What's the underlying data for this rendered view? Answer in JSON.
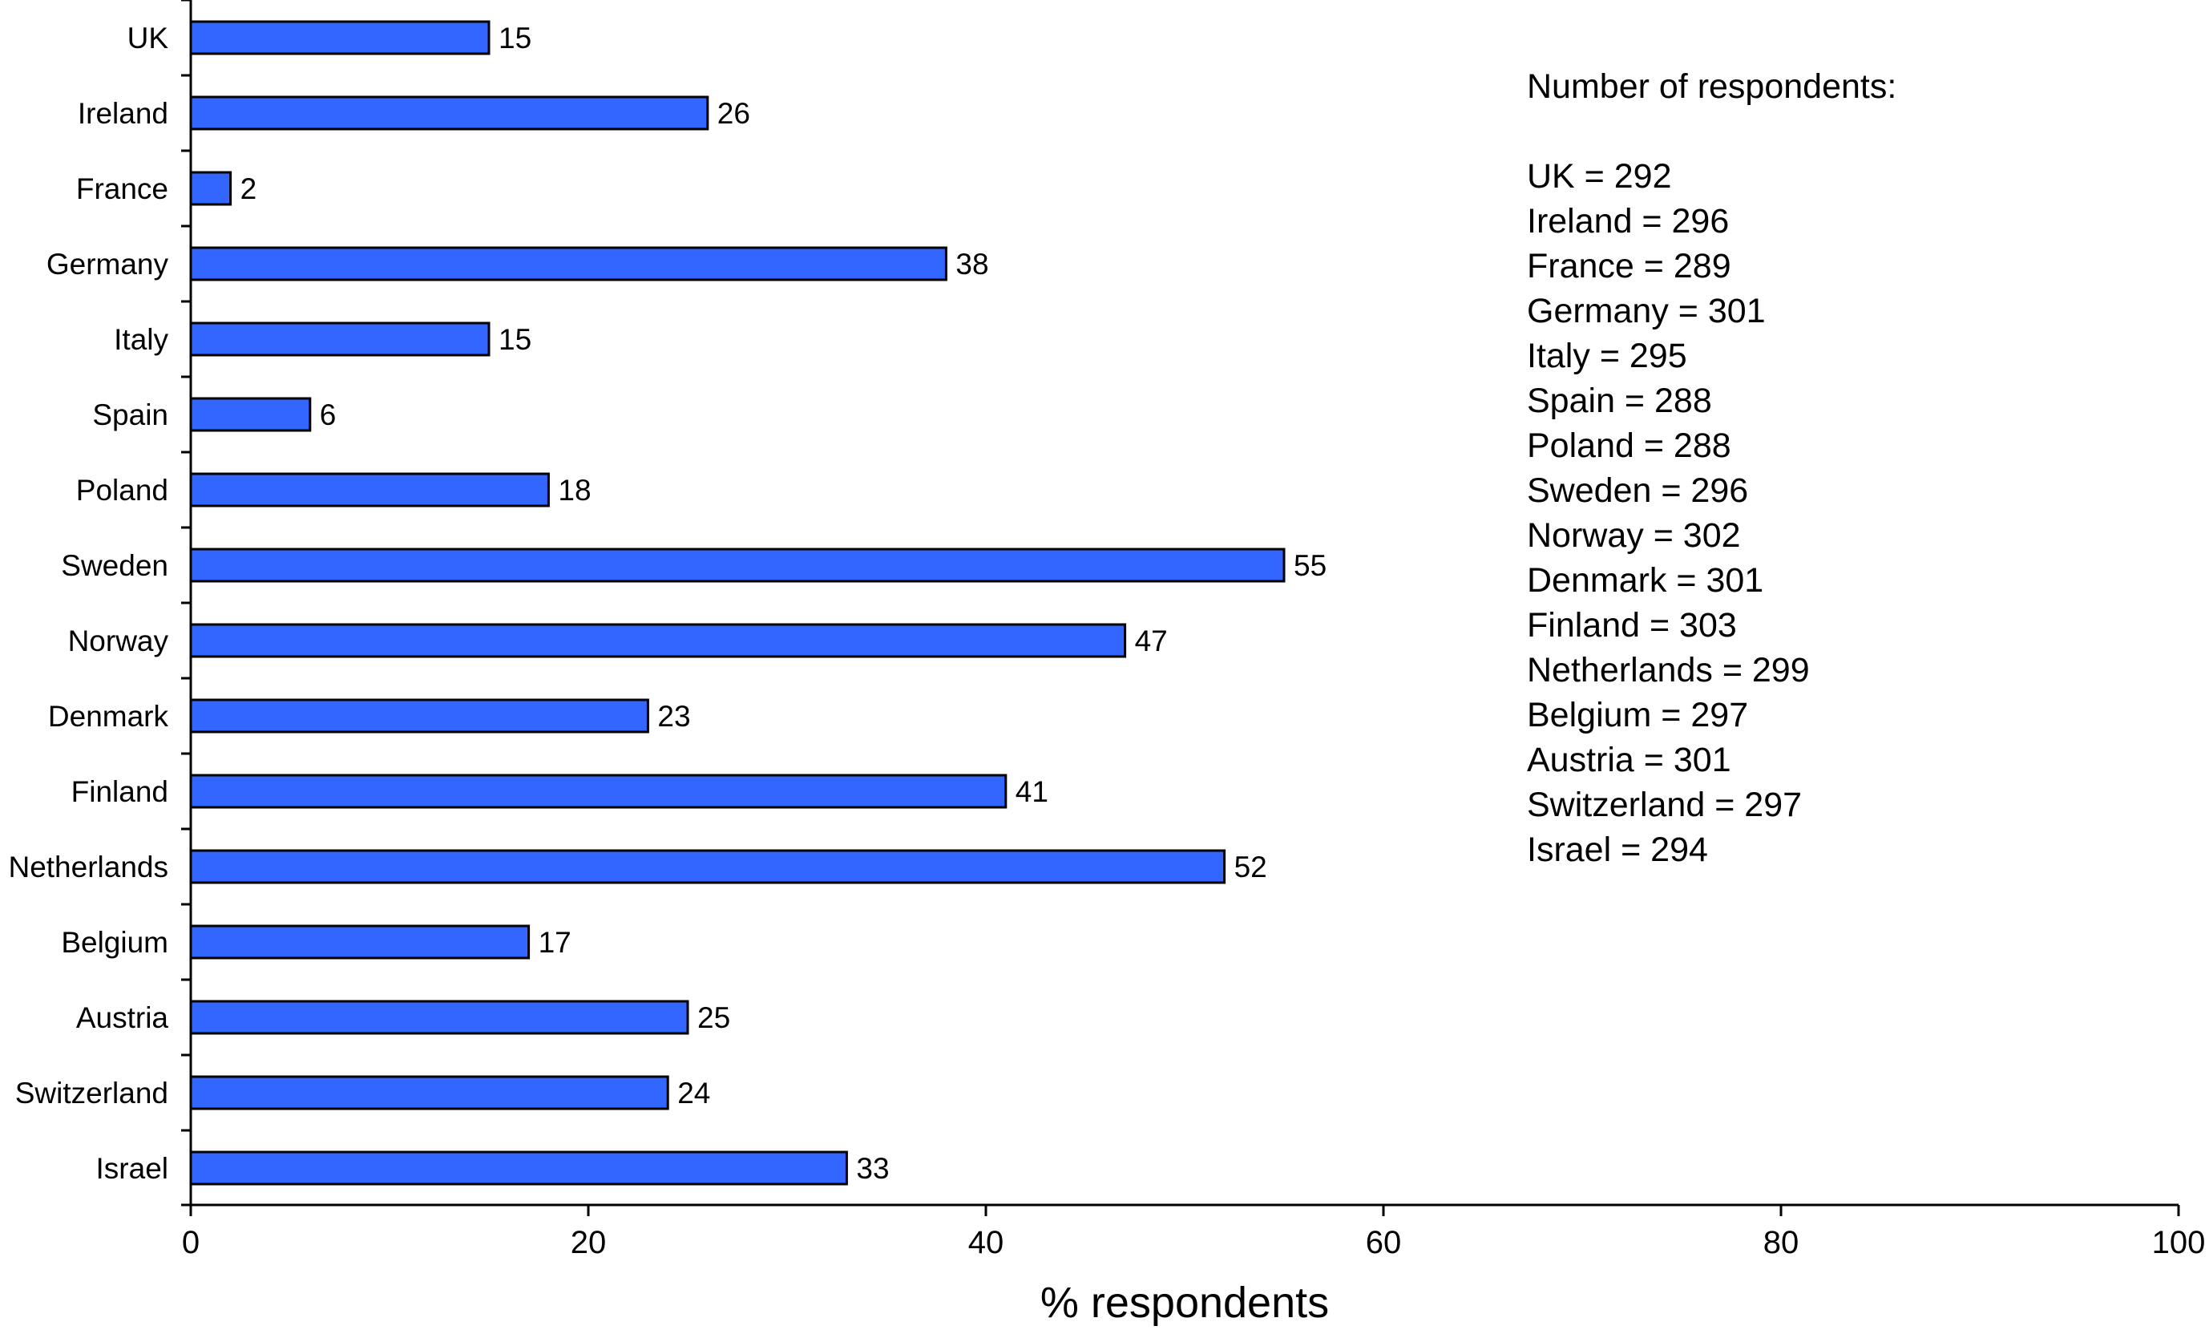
{
  "chart_data": {
    "type": "bar",
    "orientation": "horizontal",
    "categories": [
      "UK",
      "Ireland",
      "France",
      "Germany",
      "Italy",
      "Spain",
      "Poland",
      "Sweden",
      "Norway",
      "Denmark",
      "Finland",
      "Netherlands",
      "Belgium",
      "Austria",
      "Switzerland",
      "Israel"
    ],
    "values": [
      15,
      26,
      2,
      38,
      15,
      6,
      18,
      55,
      47,
      23,
      41,
      52,
      17,
      25,
      24,
      33
    ],
    "xlabel": "% respondents",
    "ylabel": "",
    "xlim": [
      0,
      100
    ],
    "xticks": [
      0,
      20,
      40,
      60,
      80,
      100
    ],
    "grid": false,
    "bar_color": "#3366ff",
    "data_labels": true
  },
  "respondents": {
    "title": "Number of respondents:",
    "rows": [
      {
        "country": "UK",
        "n": 292
      },
      {
        "country": "Ireland",
        "n": 296
      },
      {
        "country": "France",
        "n": 289
      },
      {
        "country": "Germany",
        "n": 301
      },
      {
        "country": "Italy",
        "n": 295
      },
      {
        "country": "Spain",
        "n": 288
      },
      {
        "country": "Poland",
        "n": 288
      },
      {
        "country": "Sweden",
        "n": 296
      },
      {
        "country": "Norway",
        "n": 302
      },
      {
        "country": "Denmark",
        "n": 301
      },
      {
        "country": "Finland",
        "n": 303
      },
      {
        "country": "Netherlands",
        "n": 299
      },
      {
        "country": "Belgium",
        "n": 297
      },
      {
        "country": "Austria",
        "n": 301
      },
      {
        "country": "Switzerland",
        "n": 297
      },
      {
        "country": "Israel",
        "n": 294
      }
    ]
  }
}
